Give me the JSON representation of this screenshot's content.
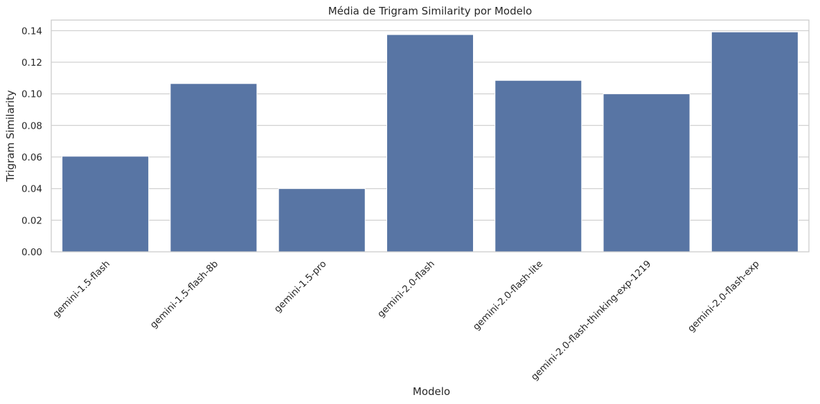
{
  "chart_data": {
    "type": "bar",
    "title": "Média de Trigram Similarity por Modelo",
    "xlabel": "Modelo",
    "ylabel": "Trigram Similarity",
    "categories": [
      "gemini-1.5-flash",
      "gemini-1.5-flash-8b",
      "gemini-1.5-pro",
      "gemini-2.0-flash",
      "gemini-2.0-flash-lite",
      "gemini-2.0-flash-thinking-exp-1219",
      "gemini-2.0-flash-exp"
    ],
    "values": [
      0.0605,
      0.1065,
      0.04,
      0.1375,
      0.1085,
      0.1,
      0.1392
    ],
    "ylim": [
      0,
      0.1467
    ],
    "yticks": [
      "0.00",
      "0.02",
      "0.04",
      "0.06",
      "0.08",
      "0.10",
      "0.12",
      "0.14"
    ],
    "grid": true,
    "bar_color": "#5875a4"
  }
}
